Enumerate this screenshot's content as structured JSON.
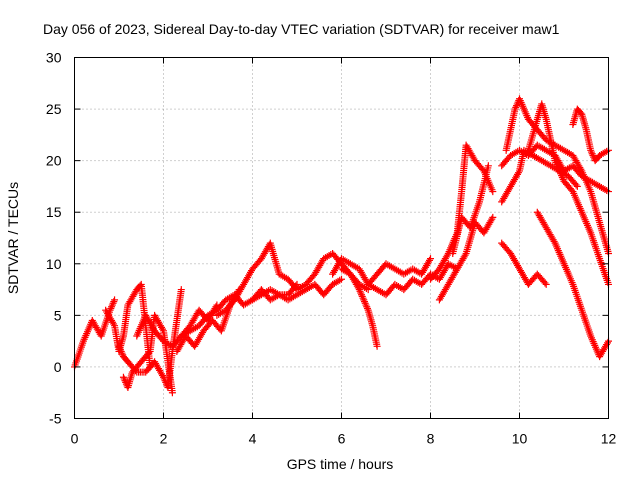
{
  "chart_data": {
    "type": "scatter",
    "title": "Day 056 of 2023, Sidereal Day-to-day VTEC variation (SDTVAR) for receiver maw1",
    "xlabel": "GPS time / hours",
    "ylabel": "SDTVAR / TECUs",
    "xlim": [
      0,
      12
    ],
    "ylim": [
      -5,
      30
    ],
    "xticks": [
      "0",
      "2",
      "4",
      "6",
      "8",
      "10",
      "12"
    ],
    "yticks": [
      "-5",
      "0",
      "5",
      "10",
      "15",
      "20",
      "25",
      "30"
    ],
    "grid": true,
    "marker": "+",
    "series": [
      {
        "name": "SDTVAR",
        "color": "#ff0000",
        "tracks": [
          {
            "x": [
              0.0,
              0.2,
              0.4,
              0.6,
              0.8,
              0.9
            ],
            "y": [
              0.0,
              2.5,
              4.5,
              3.0,
              5.5,
              6.5
            ]
          },
          {
            "x": [
              0.7,
              0.9,
              1.0,
              1.1,
              1.2,
              1.4,
              1.5,
              1.6,
              1.7
            ],
            "y": [
              5.5,
              4.0,
              1.5,
              3.0,
              6.0,
              7.5,
              8.0,
              4.0,
              0.0
            ]
          },
          {
            "x": [
              1.0,
              1.1,
              1.2,
              1.4,
              1.6,
              1.8,
              2.0,
              2.1,
              2.2,
              2.3,
              2.4
            ],
            "y": [
              2.0,
              1.0,
              0.5,
              -0.5,
              -0.5,
              0.5,
              -1.0,
              -2.0,
              1.5,
              4.5,
              7.5
            ]
          },
          {
            "x": [
              1.1,
              1.2,
              1.3,
              1.5,
              1.7,
              1.8,
              2.0,
              2.2
            ],
            "y": [
              -1.0,
              -2.0,
              -0.5,
              0.5,
              1.5,
              5.0,
              3.5,
              -2.5
            ]
          },
          {
            "x": [
              1.4,
              1.6,
              1.8,
              2.0,
              2.2,
              2.4,
              2.6,
              2.8,
              3.0,
              3.2
            ],
            "y": [
              3.0,
              5.0,
              3.5,
              2.5,
              2.0,
              3.0,
              4.0,
              5.5,
              4.5,
              6.0
            ]
          },
          {
            "x": [
              2.3,
              2.5,
              2.7,
              2.9,
              3.1,
              3.3,
              3.5,
              3.7
            ],
            "y": [
              1.5,
              3.0,
              2.0,
              3.5,
              4.5,
              3.5,
              6.0,
              7.5
            ]
          },
          {
            "x": [
              2.4,
              2.6,
              2.8,
              3.0,
              3.2,
              3.4,
              3.6,
              3.8,
              4.0,
              4.2,
              4.4,
              4.6,
              4.8,
              5.0
            ],
            "y": [
              3.0,
              3.5,
              4.0,
              5.0,
              5.5,
              6.5,
              7.0,
              6.0,
              6.5,
              7.5,
              6.5,
              7.0,
              7.0,
              8.0
            ]
          },
          {
            "x": [
              3.2,
              3.4,
              3.6,
              3.8,
              4.0,
              4.2,
              4.4,
              4.6,
              4.8,
              5.0,
              5.2,
              5.4,
              5.6,
              5.8,
              6.0,
              6.2,
              6.4,
              6.6
            ],
            "y": [
              5.0,
              5.5,
              6.5,
              8.0,
              9.5,
              10.5,
              12.0,
              9.0,
              8.5,
              7.5,
              8.0,
              9.0,
              10.5,
              11.0,
              10.0,
              9.0,
              8.0,
              7.5
            ]
          },
          {
            "x": [
              4.0,
              4.2,
              4.4,
              4.6,
              4.8,
              5.0,
              5.2,
              5.4,
              5.6,
              5.8,
              6.0
            ],
            "y": [
              6.5,
              7.0,
              7.5,
              7.0,
              6.5,
              7.0,
              7.5,
              8.0,
              7.0,
              8.0,
              8.5
            ]
          },
          {
            "x": [
              5.8,
              6.0,
              6.2,
              6.4,
              6.6,
              6.8,
              7.0,
              7.2,
              7.4,
              7.6,
              7.8,
              8.0
            ],
            "y": [
              9.0,
              10.5,
              10.0,
              9.5,
              8.0,
              9.0,
              10.0,
              9.5,
              9.0,
              9.5,
              9.0,
              10.5
            ]
          },
          {
            "x": [
              6.0,
              6.2,
              6.4,
              6.5,
              6.6,
              6.7,
              6.8
            ],
            "y": [
              9.5,
              9.0,
              7.5,
              6.5,
              5.5,
              4.0,
              2.0
            ]
          },
          {
            "x": [
              6.6,
              6.8,
              7.0,
              7.2,
              7.4,
              7.6,
              7.8,
              8.0,
              8.2,
              8.4,
              8.6
            ],
            "y": [
              8.0,
              7.5,
              7.0,
              8.0,
              7.5,
              8.5,
              8.0,
              9.0,
              8.5,
              10.0,
              9.5
            ]
          },
          {
            "x": [
              8.0,
              8.2,
              8.4,
              8.6,
              8.7,
              8.8,
              9.0,
              9.2,
              9.4
            ],
            "y": [
              8.5,
              9.5,
              11.0,
              13.0,
              17.0,
              21.5,
              20.0,
              19.0,
              17.0
            ]
          },
          {
            "x": [
              8.2,
              8.4,
              8.6,
              8.8,
              9.0,
              9.2,
              9.4
            ],
            "y": [
              6.5,
              8.0,
              9.5,
              11.0,
              14.0,
              13.0,
              14.5
            ]
          },
          {
            "x": [
              8.5,
              8.7,
              8.9,
              9.1,
              9.3
            ],
            "y": [
              11.0,
              14.5,
              13.5,
              16.0,
              19.5
            ]
          },
          {
            "x": [
              9.6,
              9.8,
              10.0,
              10.2,
              10.4,
              10.6,
              10.8,
              11.0,
              11.2,
              11.4,
              11.6,
              11.8,
              12.0
            ],
            "y": [
              19.5,
              20.5,
              21.0,
              20.5,
              21.5,
              21.0,
              20.5,
              19.0,
              19.5,
              18.5,
              18.0,
              17.5,
              17.0
            ]
          },
          {
            "x": [
              9.6,
              9.8,
              10.0,
              10.1,
              10.3,
              10.5,
              10.7,
              10.9,
              11.1,
              11.3
            ],
            "y": [
              16.0,
              17.5,
              19.0,
              21.0,
              20.5,
              20.0,
              19.5,
              19.0,
              18.5,
              17.5
            ]
          },
          {
            "x": [
              9.7,
              9.9,
              10.0,
              10.2,
              10.4,
              10.6,
              10.8,
              11.0,
              11.2,
              11.4,
              11.6,
              11.8,
              12.0
            ],
            "y": [
              21.0,
              25.0,
              26.0,
              24.0,
              23.0,
              22.0,
              21.5,
              21.0,
              20.5,
              19.0,
              17.0,
              14.0,
              11.0
            ]
          },
          {
            "x": [
              10.2,
              10.4,
              10.5,
              10.6,
              10.8,
              11.0,
              11.2,
              11.4,
              11.6,
              11.8,
              12.0
            ],
            "y": [
              21.0,
              24.0,
              25.5,
              24.0,
              20.0,
              18.0,
              17.0,
              15.0,
              13.0,
              10.5,
              8.0
            ]
          },
          {
            "x": [
              10.4,
              10.6,
              10.8,
              11.0,
              11.2,
              11.4,
              11.6,
              11.8,
              12.0
            ],
            "y": [
              15.0,
              13.5,
              12.0,
              10.0,
              8.0,
              5.5,
              3.0,
              1.0,
              2.5
            ]
          },
          {
            "x": [
              9.6,
              9.8,
              10.0,
              10.2,
              10.4,
              10.6
            ],
            "y": [
              12.0,
              11.0,
              9.5,
              8.0,
              9.0,
              8.0
            ]
          },
          {
            "x": [
              11.2,
              11.3,
              11.4,
              11.5,
              11.6,
              11.7,
              11.8,
              12.0
            ],
            "y": [
              23.5,
              25.0,
              24.5,
              23.0,
              21.0,
              20.0,
              20.5,
              21.0
            ]
          }
        ]
      }
    ]
  }
}
